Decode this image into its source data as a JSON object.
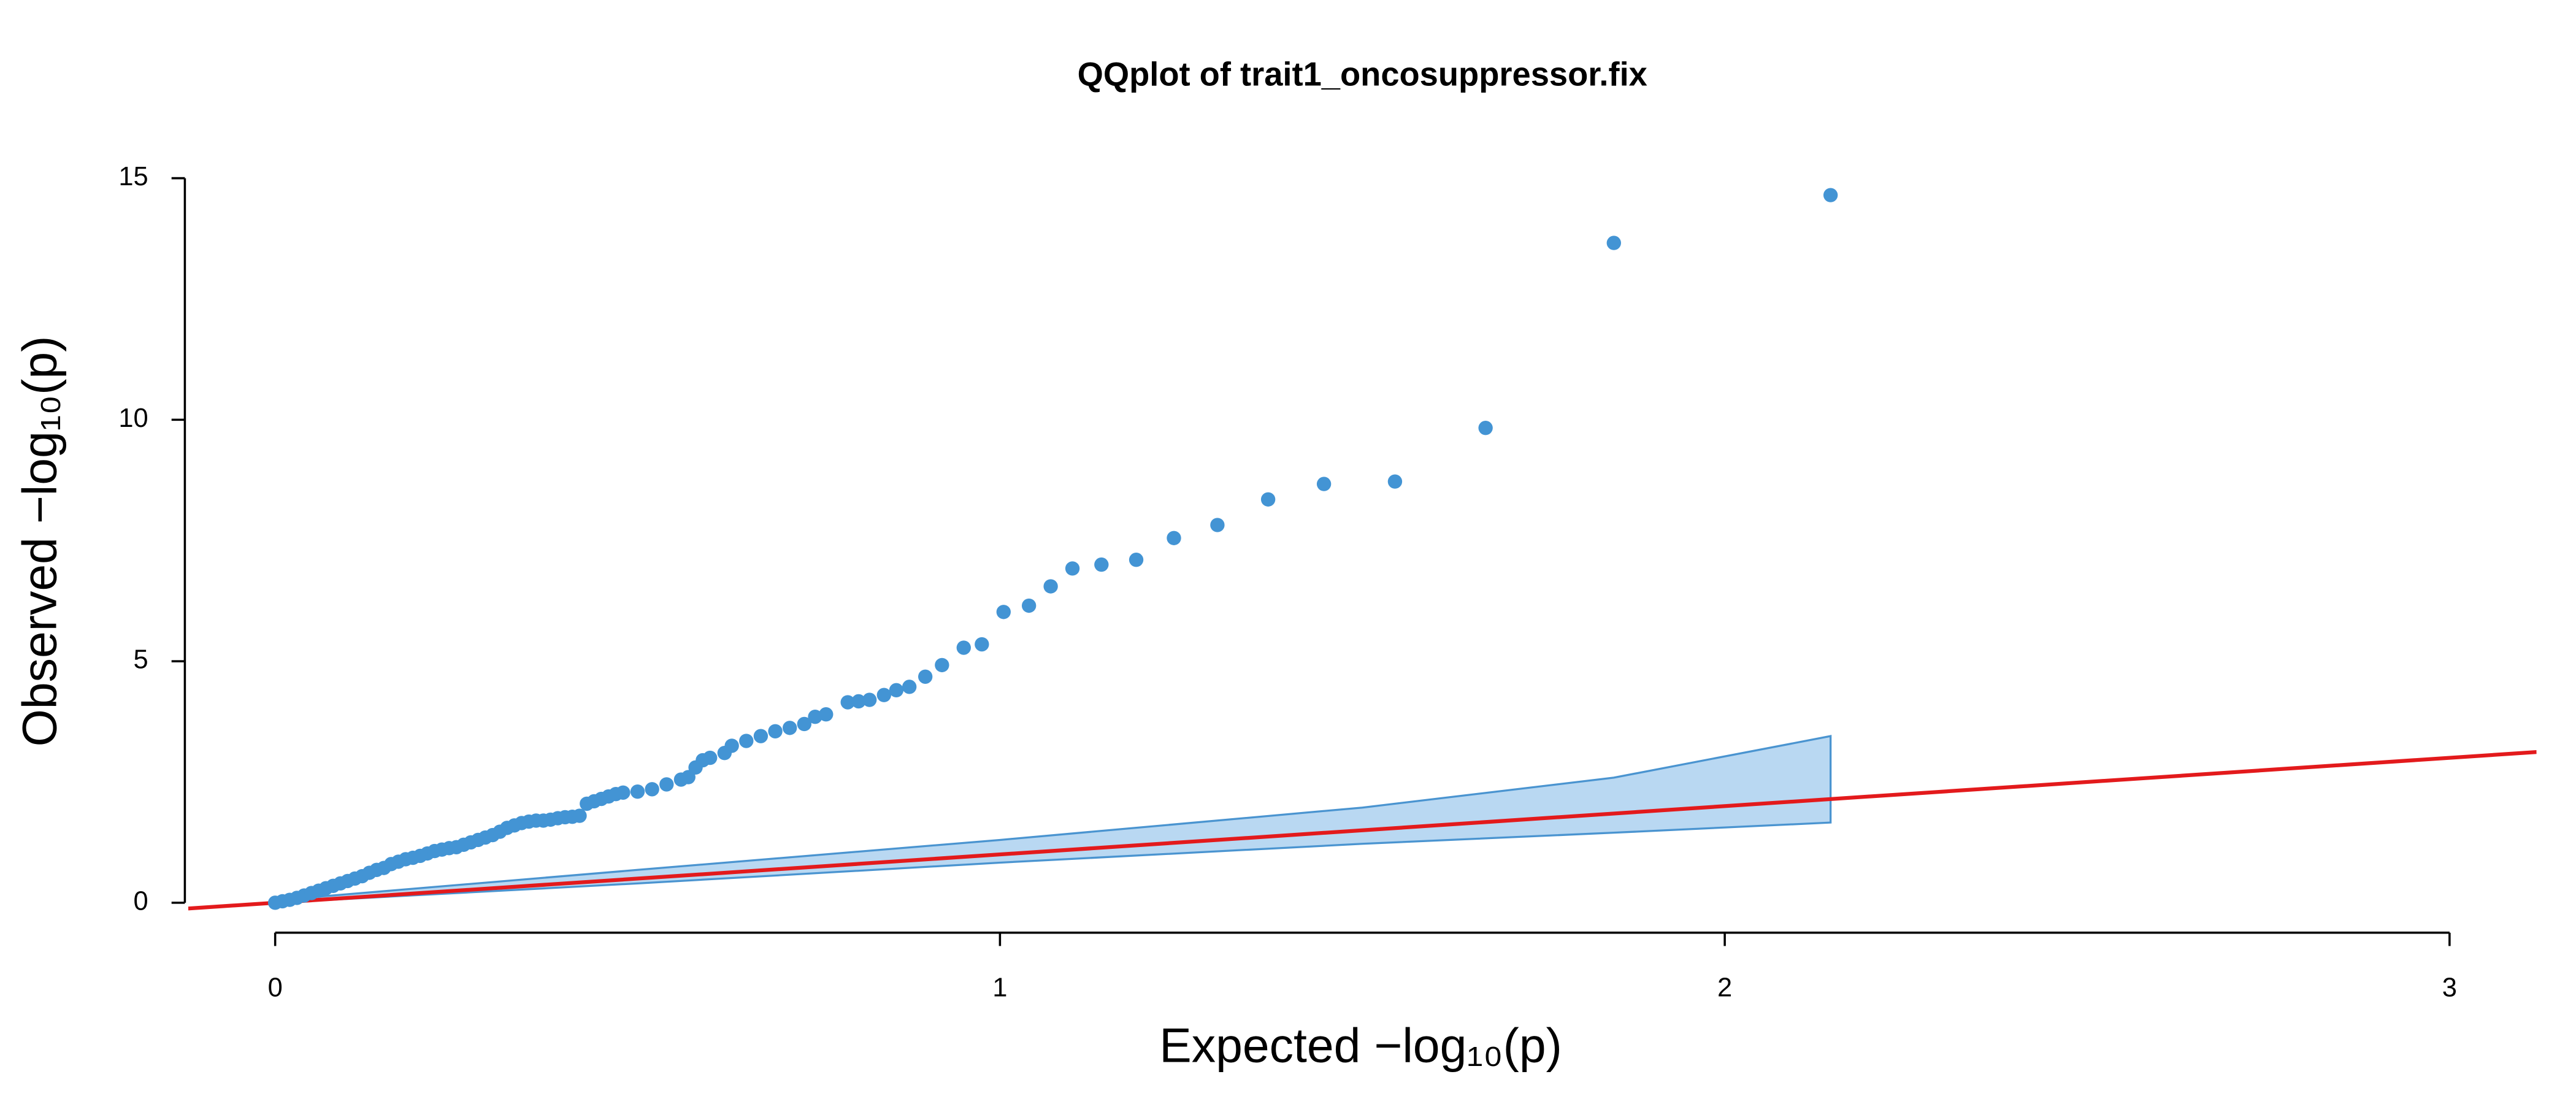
{
  "chart_data": {
    "type": "scatter",
    "title": "QQplot of trait1_oncosuppressor.fix",
    "xlabel": "Expected  −log₁₀(p)",
    "ylabel": "Observed  −log₁₀(p)",
    "xlim": [
      -0.12,
      3.12
    ],
    "ylim": [
      -0.62,
      15.6
    ],
    "xticks": [
      0,
      1,
      2,
      3
    ],
    "yticks": [
      0,
      5,
      10,
      15
    ],
    "grid": false,
    "color": "#4394d4",
    "x": [
      0,
      0.01,
      0.02,
      0.03,
      0.04,
      0.05,
      0.06,
      0.07,
      0.08,
      0.09,
      0.1,
      0.11,
      0.12,
      0.13,
      0.14,
      0.15,
      0.16,
      0.17,
      0.18,
      0.19,
      0.2,
      0.21,
      0.22,
      0.23,
      0.24,
      0.25,
      0.26,
      0.27,
      0.28,
      0.29,
      0.3,
      0.31,
      0.32,
      0.33,
      0.34,
      0.35,
      0.36,
      0.37,
      0.38,
      0.39,
      0.4,
      0.41,
      0.42,
      0.43,
      0.44,
      0.45,
      0.46,
      0.47,
      0.48,
      0.5,
      0.52,
      0.54,
      0.56,
      0.57,
      0.58,
      0.59,
      0.6,
      0.62,
      0.63,
      0.65,
      0.67,
      0.69,
      0.71,
      0.73,
      0.745,
      0.76,
      0.79,
      0.805,
      0.82,
      0.84,
      0.857,
      0.875,
      0.897,
      0.92,
      0.95,
      0.975,
      1.005,
      1.04,
      1.07,
      1.1,
      1.14,
      1.188,
      1.24,
      1.3,
      1.37,
      1.447,
      1.545,
      1.67,
      1.847,
      2.146
    ],
    "values": [
      0,
      0.03,
      0.06,
      0.1,
      0.15,
      0.2,
      0.25,
      0.3,
      0.35,
      0.4,
      0.45,
      0.5,
      0.55,
      0.62,
      0.68,
      0.72,
      0.8,
      0.85,
      0.9,
      0.93,
      0.97,
      1.02,
      1.07,
      1.1,
      1.13,
      1.15,
      1.2,
      1.25,
      1.3,
      1.35,
      1.4,
      1.47,
      1.55,
      1.6,
      1.65,
      1.68,
      1.7,
      1.7,
      1.72,
      1.75,
      1.77,
      1.78,
      1.8,
      2.05,
      2.1,
      2.15,
      2.2,
      2.25,
      2.28,
      2.3,
      2.35,
      2.45,
      2.55,
      2.6,
      2.8,
      2.95,
      3.0,
      3.1,
      3.25,
      3.35,
      3.45,
      3.55,
      3.62,
      3.7,
      3.85,
      3.9,
      4.15,
      4.17,
      4.2,
      4.3,
      4.4,
      4.47,
      4.68,
      4.92,
      5.28,
      5.35,
      6.02,
      6.15,
      6.55,
      6.92,
      7.0,
      7.1,
      7.55,
      7.82,
      8.35,
      8.67,
      8.72,
      9.83,
      13.66,
      14.65
    ],
    "confidence_band": {
      "color": "#b9d8f2",
      "edge_color": "#4a94d0",
      "x": [
        0,
        0.5,
        1,
        1.5,
        1.847,
        2.146
      ],
      "upper": [
        0.05,
        0.68,
        1.3,
        1.97,
        2.59,
        3.45
      ],
      "lower": [
        0,
        0.4,
        0.83,
        1.22,
        1.45,
        1.66
      ]
    },
    "reference_line": {
      "slope": 1,
      "intercept": 0,
      "color": "#e31a1c"
    }
  }
}
